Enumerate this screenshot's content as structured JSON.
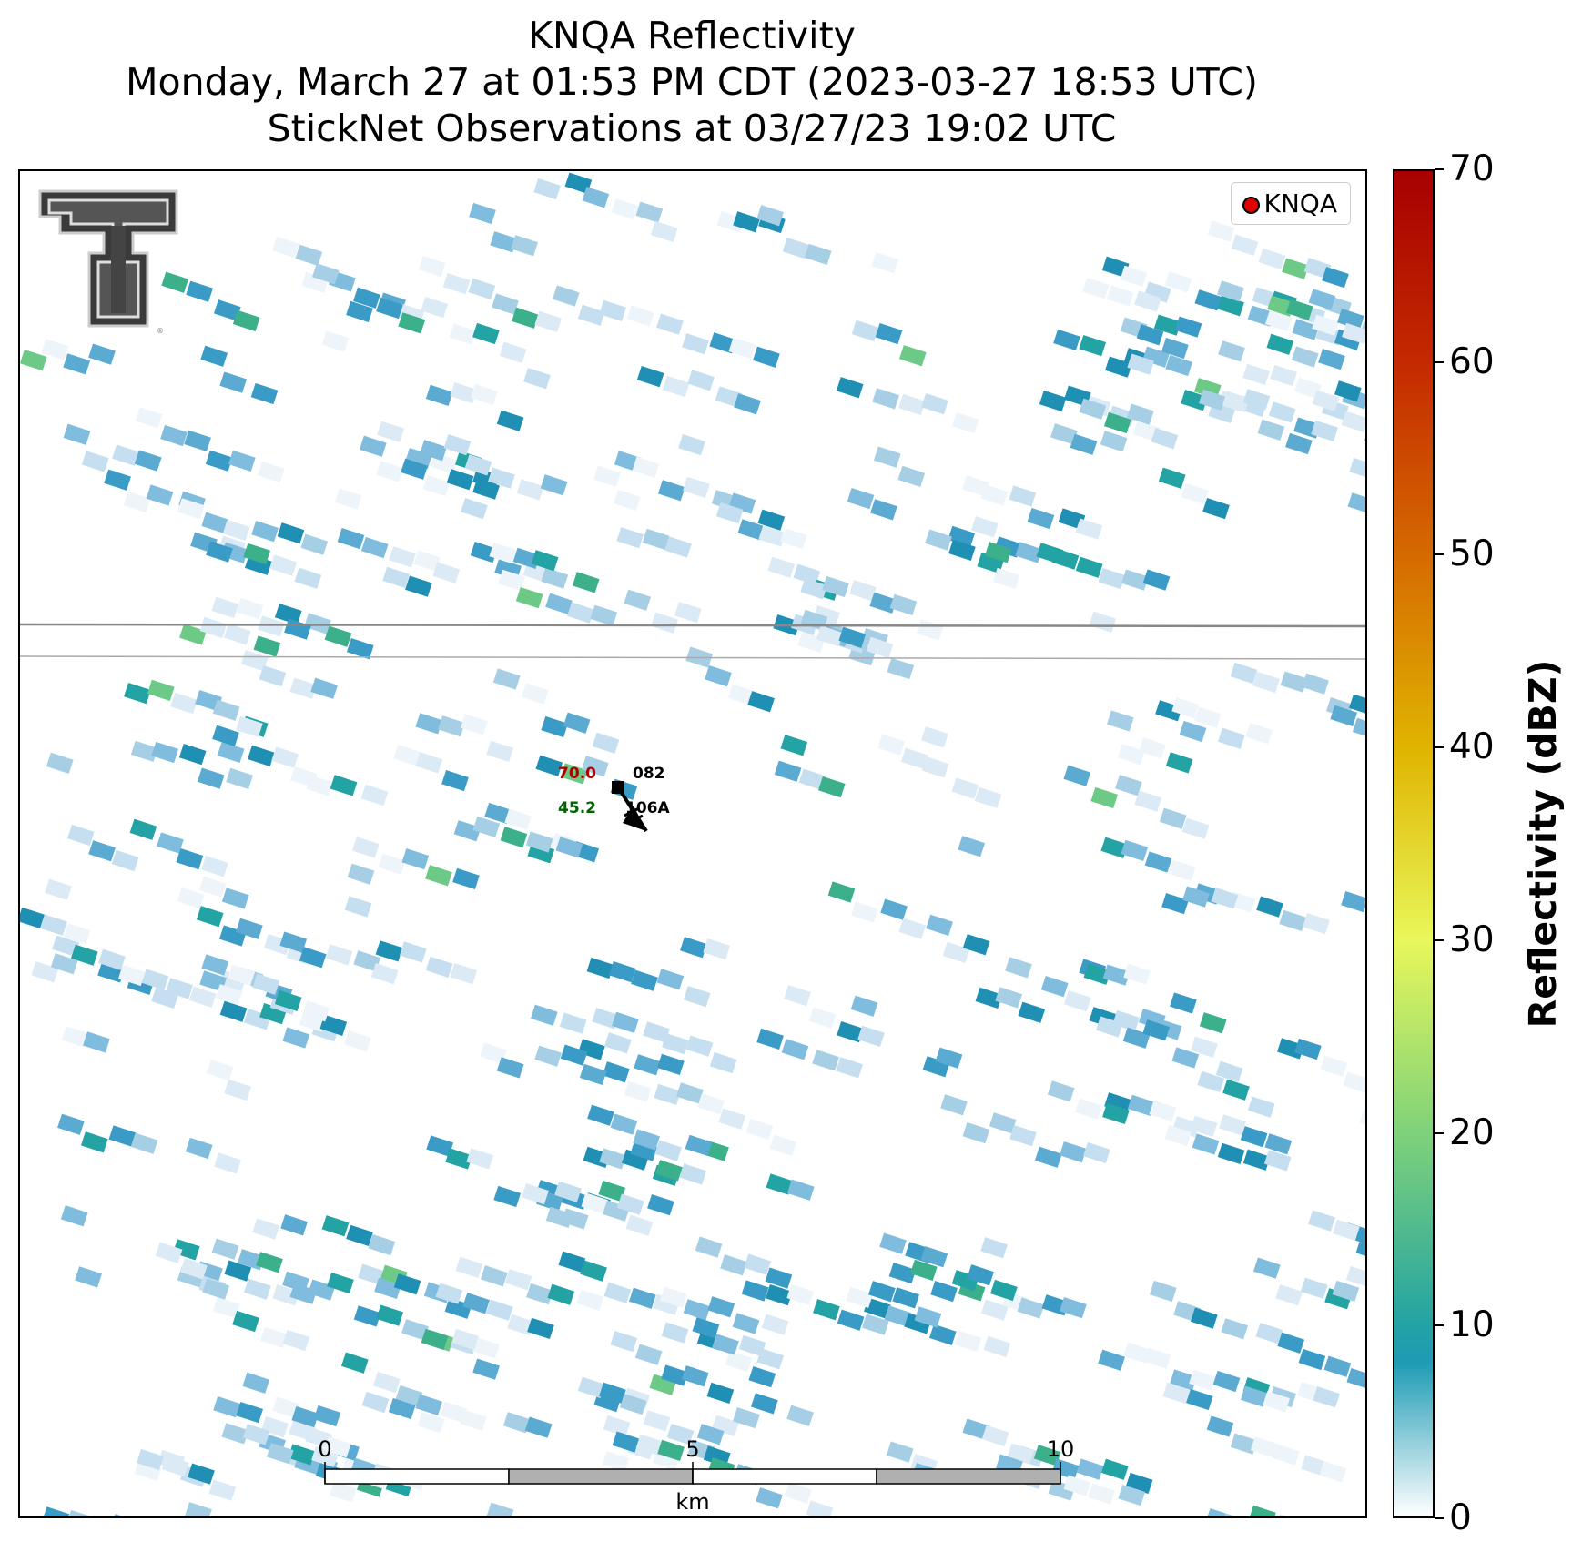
{
  "titles": {
    "line1": "KNQA Reflectivity",
    "line2": "Monday, March 27 at 01:53 PM CDT (2023-03-27 18:53 UTC)",
    "line3": "StickNet Observations at 03/27/23 19:02 UTC"
  },
  "legend": {
    "label": "KNQA",
    "marker_color": "#e00000"
  },
  "station": {
    "temperature": "70.0",
    "temperature_color": "#b00000",
    "dewpoint": "45.2",
    "dewpoint_color": "#006400",
    "station_number": "082",
    "station_id": "106A"
  },
  "scale_bar": {
    "ticks": [
      "0",
      "5",
      "10"
    ],
    "unit": "km"
  },
  "colorbar": {
    "title": "Reflectivity (dBZ)",
    "ticks": [
      "0",
      "10",
      "20",
      "30",
      "40",
      "50",
      "60",
      "70"
    ],
    "min": 0,
    "max": 70,
    "stops": [
      {
        "value": 0,
        "color": "#ffffff"
      },
      {
        "value": 8,
        "color": "#1f9bb5"
      },
      {
        "value": 10,
        "color": "#23a3a3"
      },
      {
        "value": 20,
        "color": "#7fd27a"
      },
      {
        "value": 30,
        "color": "#e8f75a"
      },
      {
        "value": 40,
        "color": "#e0b400"
      },
      {
        "value": 50,
        "color": "#d56a00"
      },
      {
        "value": 60,
        "color": "#c42a00"
      },
      {
        "value": 70,
        "color": "#a80000"
      }
    ]
  },
  "logo": {
    "name": "texas-tech-double-t"
  }
}
